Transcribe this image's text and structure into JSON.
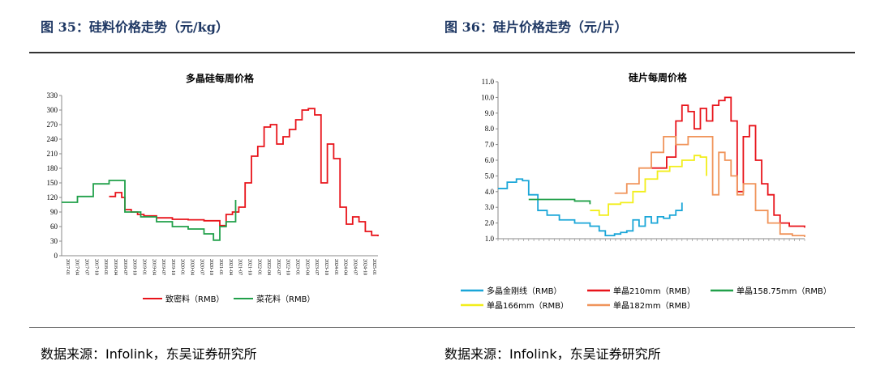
{
  "left": {
    "figure_title": "图 35：硅料价格走势（元/kg）",
    "source": "数据来源：Infolink，东吴证券研究所",
    "chart_data": {
      "type": "line",
      "title": "多晶硅每周价格",
      "ylim": [
        0,
        330
      ],
      "yticks": [
        0,
        30,
        60,
        90,
        120,
        150,
        180,
        210,
        240,
        270,
        300,
        330
      ],
      "x_categories": [
        "2017-01",
        "2017-04",
        "2017-07",
        "2017-10",
        "2018-01",
        "2018-04",
        "2018-07",
        "2018-10",
        "2019-01",
        "2019-04",
        "2019-07",
        "2019-10",
        "2020-01",
        "2020-04",
        "2020-07",
        "2020-10",
        "2021-01",
        "2021-04",
        "2021-07",
        "2021-10",
        "2022-01",
        "2022-04",
        "2022-07",
        "2022-10",
        "2023-01",
        "2023-04",
        "2023-07",
        "2023-10",
        "2024-01",
        "2024-04",
        "2024-07",
        "2024-10",
        "2025-01"
      ],
      "legend_position": "bottom",
      "series": [
        {
          "name": "致密料（RMB）",
          "color": "#e8131a",
          "x": [
            0.15,
            0.17,
            0.19,
            0.2,
            0.22,
            0.24,
            0.26,
            0.3,
            0.35,
            0.4,
            0.45,
            0.5,
            0.52,
            0.54,
            0.56,
            0.58,
            0.6,
            0.62,
            0.64,
            0.66,
            0.68,
            0.7,
            0.72,
            0.74,
            0.76,
            0.78,
            0.8,
            0.82,
            0.84,
            0.86,
            0.88,
            0.9,
            0.92,
            0.94,
            0.96,
            0.98,
            1.0
          ],
          "y": [
            122,
            130,
            120,
            95,
            90,
            85,
            82,
            78,
            75,
            74,
            72,
            62,
            85,
            90,
            100,
            150,
            205,
            225,
            265,
            270,
            230,
            245,
            260,
            280,
            300,
            303,
            290,
            150,
            230,
            200,
            100,
            65,
            80,
            70,
            50,
            42,
            40
          ]
        },
        {
          "name": "菜花料（RMB）",
          "color": "#21a04a",
          "x": [
            0.0,
            0.05,
            0.1,
            0.15,
            0.2,
            0.25,
            0.3,
            0.35,
            0.4,
            0.45,
            0.48,
            0.5,
            0.52,
            0.55
          ],
          "y": [
            110,
            122,
            148,
            155,
            90,
            80,
            70,
            60,
            55,
            45,
            32,
            60,
            70,
            115
          ]
        }
      ]
    }
  },
  "right": {
    "figure_title": "图 36：硅片价格走势（元/片）",
    "source": "数据来源：Infolink，东吴证券研究所",
    "chart_data": {
      "type": "line",
      "title": "硅片每周价格",
      "ylim": [
        1.0,
        11.0
      ],
      "yticks": [
        "1.0",
        "2.0",
        "3.0",
        "4.0",
        "5.0",
        "6.0",
        "7.0",
        "8.0",
        "9.0",
        "10.0",
        "11.0"
      ],
      "legend_position": "bottom",
      "series": [
        {
          "name": "多晶金刚线（RMB）",
          "color": "#1aa6d8",
          "x": [
            0.0,
            0.03,
            0.06,
            0.08,
            0.1,
            0.13,
            0.16,
            0.2,
            0.25,
            0.3,
            0.33,
            0.35,
            0.38,
            0.4,
            0.42,
            0.44,
            0.46,
            0.48,
            0.5,
            0.52,
            0.54,
            0.56,
            0.58,
            0.6
          ],
          "y": [
            4.2,
            4.6,
            4.8,
            4.7,
            3.8,
            2.8,
            2.5,
            2.2,
            2.0,
            1.8,
            1.5,
            1.2,
            1.3,
            1.4,
            1.5,
            2.2,
            1.8,
            2.4,
            2.0,
            2.4,
            2.3,
            2.5,
            2.8,
            3.3
          ]
        },
        {
          "name": "单晶210mm（RMB）",
          "color": "#e8131a",
          "x": [
            0.5,
            0.55,
            0.58,
            0.6,
            0.62,
            0.64,
            0.66,
            0.68,
            0.7,
            0.72,
            0.74,
            0.76,
            0.78,
            0.8,
            0.82,
            0.84,
            0.86,
            0.88,
            0.9,
            0.92,
            0.95,
            1.0
          ],
          "y": [
            5.5,
            6.2,
            8.5,
            9.5,
            9.1,
            8.0,
            9.3,
            8.5,
            9.5,
            9.8,
            10.0,
            8.5,
            4.0,
            7.5,
            8.2,
            6.0,
            4.5,
            3.8,
            2.5,
            2.0,
            1.8,
            1.7
          ]
        },
        {
          "name": "单晶158.75mm（RMB）",
          "color": "#21a04a",
          "x": [
            0.1,
            0.15,
            0.2,
            0.25,
            0.3
          ],
          "y": [
            3.5,
            3.5,
            3.5,
            3.4,
            3.2
          ]
        },
        {
          "name": "单晶166mm（RMB）",
          "color": "#f2ee1a",
          "x": [
            0.3,
            0.33,
            0.36,
            0.4,
            0.44,
            0.48,
            0.52,
            0.56,
            0.6,
            0.64,
            0.66,
            0.68
          ],
          "y": [
            2.8,
            2.5,
            3.2,
            3.3,
            4.0,
            4.8,
            5.3,
            5.6,
            6.0,
            6.3,
            6.2,
            5.0
          ]
        },
        {
          "name": "单晶182mm（RMB）",
          "color": "#f0945a",
          "x": [
            0.38,
            0.42,
            0.46,
            0.5,
            0.54,
            0.58,
            0.62,
            0.66,
            0.7,
            0.72,
            0.74,
            0.76,
            0.78,
            0.8,
            0.84,
            0.88,
            0.92,
            0.96,
            1.0
          ],
          "y": [
            3.9,
            4.5,
            5.5,
            6.5,
            7.5,
            7.0,
            7.5,
            7.5,
            3.8,
            6.5,
            6.0,
            5.0,
            3.8,
            4.5,
            2.8,
            2.0,
            1.3,
            1.2,
            1.1
          ]
        }
      ]
    }
  }
}
